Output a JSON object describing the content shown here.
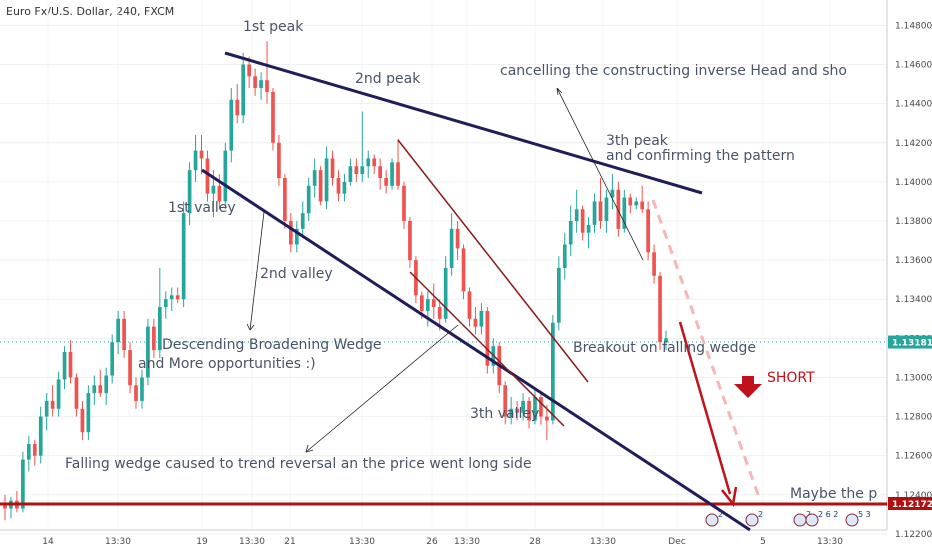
{
  "header": {
    "title": "Euro Fx/U.S. Dollar, 240, FXCM"
  },
  "colors": {
    "bull": "#26a69a",
    "bear": "#ef5350",
    "wedge_outer": "#1f1d5a",
    "wedge_inner": "#8b1a1a",
    "support": "#b01010",
    "arrow": "#c0121a",
    "projection": "#f4b6b6",
    "current_price_line": "#26a69a"
  },
  "chart_data": {
    "type": "candlestick",
    "instrument": "Euro Fx/U.S. Dollar",
    "timeframe": "240",
    "source": "FXCM",
    "y_axis": {
      "side": "right",
      "ylim": [
        1.1222,
        1.1493
      ],
      "ticks": [
        "1.14800",
        "1.14600",
        "1.14400",
        "1.14200",
        "1.14000",
        "1.13800",
        "1.13600",
        "1.13400",
        "1.13200",
        "1.13000",
        "1.12800",
        "1.12600",
        "1.12400",
        "1.12200"
      ]
    },
    "x_axis": {
      "ticks": [
        "14",
        "13:30",
        "19",
        "13:30",
        "21",
        "13:30",
        "26",
        "13:30",
        "28",
        "13:30",
        "Dec",
        "5",
        "13:30"
      ]
    },
    "current_price": {
      "value": "1.13181"
    },
    "support_price": {
      "value": "1.12172"
    },
    "candles": [
      [
        1.1236,
        1.124,
        1.1227,
        1.1233
      ],
      [
        1.1233,
        1.1239,
        1.1228,
        1.1237
      ],
      [
        1.1237,
        1.1242,
        1.1231,
        1.1233
      ],
      [
        1.1233,
        1.1262,
        1.1231,
        1.1258
      ],
      [
        1.1258,
        1.127,
        1.1252,
        1.1266
      ],
      [
        1.1266,
        1.1268,
        1.1255,
        1.126
      ],
      [
        1.126,
        1.1285,
        1.1256,
        1.128
      ],
      [
        1.128,
        1.1292,
        1.1273,
        1.1288
      ],
      [
        1.1288,
        1.1296,
        1.128,
        1.1284
      ],
      [
        1.1284,
        1.1303,
        1.128,
        1.1299
      ],
      [
        1.1299,
        1.1316,
        1.1294,
        1.1313
      ],
      [
        1.1313,
        1.1319,
        1.1297,
        1.13
      ],
      [
        1.13,
        1.1302,
        1.128,
        1.1284
      ],
      [
        1.1284,
        1.1288,
        1.1268,
        1.1272
      ],
      [
        1.1272,
        1.1296,
        1.1268,
        1.1292
      ],
      [
        1.1292,
        1.1301,
        1.1286,
        1.1296
      ],
      [
        1.1296,
        1.1304,
        1.129,
        1.1292
      ],
      [
        1.1292,
        1.1305,
        1.1286,
        1.1301
      ],
      [
        1.1301,
        1.1322,
        1.1297,
        1.1318
      ],
      [
        1.1318,
        1.1334,
        1.1312,
        1.133
      ],
      [
        1.133,
        1.1334,
        1.131,
        1.1314
      ],
      [
        1.1314,
        1.1318,
        1.1292,
        1.1296
      ],
      [
        1.1296,
        1.13,
        1.1284,
        1.1288
      ],
      [
        1.1288,
        1.1304,
        1.1284,
        1.13
      ],
      [
        1.13,
        1.133,
        1.1296,
        1.1326
      ],
      [
        1.1326,
        1.133,
        1.131,
        1.1314
      ],
      [
        1.1314,
        1.1356,
        1.131,
        1.1336
      ],
      [
        1.1336,
        1.1344,
        1.133,
        1.134
      ],
      [
        1.134,
        1.1346,
        1.1334,
        1.1342
      ],
      [
        1.1342,
        1.1346,
        1.1338,
        1.134
      ],
      [
        1.134,
        1.139,
        1.1336,
        1.1384
      ],
      [
        1.1384,
        1.141,
        1.1378,
        1.1406
      ],
      [
        1.1406,
        1.1424,
        1.14,
        1.1416
      ],
      [
        1.1416,
        1.1424,
        1.1404,
        1.1412
      ],
      [
        1.1412,
        1.1416,
        1.139,
        1.1394
      ],
      [
        1.1394,
        1.1406,
        1.1382,
        1.1398
      ],
      [
        1.1398,
        1.1404,
        1.1386,
        1.139
      ],
      [
        1.139,
        1.142,
        1.1386,
        1.1416
      ],
      [
        1.1416,
        1.1448,
        1.141,
        1.1442
      ],
      [
        1.1442,
        1.145,
        1.143,
        1.1434
      ],
      [
        1.1434,
        1.1466,
        1.143,
        1.146
      ],
      [
        1.146,
        1.1464,
        1.1448,
        1.1454
      ],
      [
        1.1454,
        1.1458,
        1.1444,
        1.1448
      ],
      [
        1.1448,
        1.1456,
        1.1442,
        1.1452
      ],
      [
        1.1452,
        1.1472,
        1.144,
        1.1446
      ],
      [
        1.1446,
        1.1448,
        1.1416,
        1.142
      ],
      [
        1.142,
        1.1424,
        1.1398,
        1.1402
      ],
      [
        1.1402,
        1.1404,
        1.1376,
        1.138
      ],
      [
        1.138,
        1.1384,
        1.1364,
        1.1368
      ],
      [
        1.1368,
        1.138,
        1.1364,
        1.1376
      ],
      [
        1.1376,
        1.139,
        1.1372,
        1.1384
      ],
      [
        1.1384,
        1.1402,
        1.138,
        1.1398
      ],
      [
        1.1398,
        1.1412,
        1.1392,
        1.1406
      ],
      [
        1.1406,
        1.1408,
        1.1388,
        1.139
      ],
      [
        1.139,
        1.1418,
        1.1386,
        1.1412
      ],
      [
        1.1412,
        1.1416,
        1.1398,
        1.1402
      ],
      [
        1.1402,
        1.1406,
        1.139,
        1.1394
      ],
      [
        1.1394,
        1.1404,
        1.139,
        1.14
      ],
      [
        1.14,
        1.1412,
        1.1398,
        1.1408
      ],
      [
        1.1408,
        1.1412,
        1.14,
        1.1404
      ],
      [
        1.1404,
        1.1436,
        1.14,
        1.1408
      ],
      [
        1.1408,
        1.1416,
        1.1402,
        1.1412
      ],
      [
        1.1412,
        1.1414,
        1.1404,
        1.1408
      ],
      [
        1.1408,
        1.1412,
        1.1396,
        1.1402
      ],
      [
        1.1402,
        1.1406,
        1.1394,
        1.1398
      ],
      [
        1.1398,
        1.1412,
        1.1396,
        1.141
      ],
      [
        1.141,
        1.1422,
        1.1396,
        1.1398
      ],
      [
        1.1398,
        1.14,
        1.1376,
        1.138
      ],
      [
        1.138,
        1.1382,
        1.1356,
        1.136
      ],
      [
        1.136,
        1.1362,
        1.1338,
        1.1342
      ],
      [
        1.1342,
        1.1344,
        1.133,
        1.1334
      ],
      [
        1.1334,
        1.1344,
        1.1326,
        1.134
      ],
      [
        1.134,
        1.1348,
        1.133,
        1.1336
      ],
      [
        1.1336,
        1.134,
        1.1324,
        1.133
      ],
      [
        1.133,
        1.1362,
        1.1328,
        1.1356
      ],
      [
        1.1356,
        1.1384,
        1.1352,
        1.1376
      ],
      [
        1.1376,
        1.138,
        1.136,
        1.1366
      ],
      [
        1.1366,
        1.1368,
        1.134,
        1.1344
      ],
      [
        1.1344,
        1.1346,
        1.1326,
        1.133
      ],
      [
        1.133,
        1.1336,
        1.1322,
        1.1326
      ],
      [
        1.1326,
        1.1338,
        1.1322,
        1.1334
      ],
      [
        1.1334,
        1.1336,
        1.1302,
        1.1306
      ],
      [
        1.1306,
        1.132,
        1.1302,
        1.1316
      ],
      [
        1.1316,
        1.1318,
        1.1292,
        1.1296
      ],
      [
        1.1296,
        1.1298,
        1.1276,
        1.128
      ],
      [
        1.128,
        1.129,
        1.1276,
        1.1284
      ],
      [
        1.1284,
        1.1288,
        1.1278,
        1.1282
      ],
      [
        1.1282,
        1.1292,
        1.1278,
        1.1288
      ],
      [
        1.1288,
        1.129,
        1.1274,
        1.1278
      ],
      [
        1.1278,
        1.1294,
        1.1276,
        1.129
      ],
      [
        1.129,
        1.1292,
        1.1276,
        1.128
      ],
      [
        1.128,
        1.1286,
        1.1268,
        1.1278
      ],
      [
        1.1278,
        1.1332,
        1.1276,
        1.1328
      ],
      [
        1.1328,
        1.1362,
        1.1324,
        1.1356
      ],
      [
        1.1356,
        1.1374,
        1.135,
        1.1368
      ],
      [
        1.1368,
        1.1388,
        1.1362,
        1.138
      ],
      [
        1.138,
        1.1396,
        1.1374,
        1.1386
      ],
      [
        1.1386,
        1.1388,
        1.137,
        1.1374
      ],
      [
        1.1374,
        1.1382,
        1.1366,
        1.1378
      ],
      [
        1.1378,
        1.1394,
        1.1374,
        1.139
      ],
      [
        1.139,
        1.1402,
        1.1376,
        1.138
      ],
      [
        1.138,
        1.1396,
        1.1374,
        1.1392
      ],
      [
        1.1392,
        1.1404,
        1.1386,
        1.1396
      ],
      [
        1.1396,
        1.14,
        1.1372,
        1.1376
      ],
      [
        1.1376,
        1.1396,
        1.1374,
        1.1392
      ],
      [
        1.1392,
        1.1394,
        1.1384,
        1.1388
      ],
      [
        1.1388,
        1.1392,
        1.1386,
        1.139
      ],
      [
        1.139,
        1.1398,
        1.1384,
        1.1386
      ],
      [
        1.1386,
        1.139,
        1.136,
        1.1364
      ],
      [
        1.1364,
        1.1368,
        1.1348,
        1.1352
      ],
      [
        1.1352,
        1.1354,
        1.1314,
        1.1318
      ],
      [
        1.1318,
        1.1324,
        1.1314,
        1.132
      ]
    ]
  },
  "drawings": {
    "labels": {
      "peak1": "1st peak",
      "peak2": "2nd peak",
      "peak3_line1": "3th peak",
      "peak3_line2": "and confirming  the pattern",
      "cancel": "cancelling the constructing inverse Head and sho",
      "valley1": "1st valley",
      "valley2": "2nd valley",
      "valley3": "3th valley",
      "wedge_line1": "Descending Broadening Wedge",
      "wedge_line2": "and More opportunities  :)",
      "breakout": "Breakout on falling wedge",
      "short": "SHORT",
      "falling": "Falling wedge caused to trend reversal an the price went long side",
      "maybe": "Maybe the p"
    },
    "event_markers": [
      "2",
      "2",
      "2",
      "2 6 2",
      "5 3"
    ]
  }
}
